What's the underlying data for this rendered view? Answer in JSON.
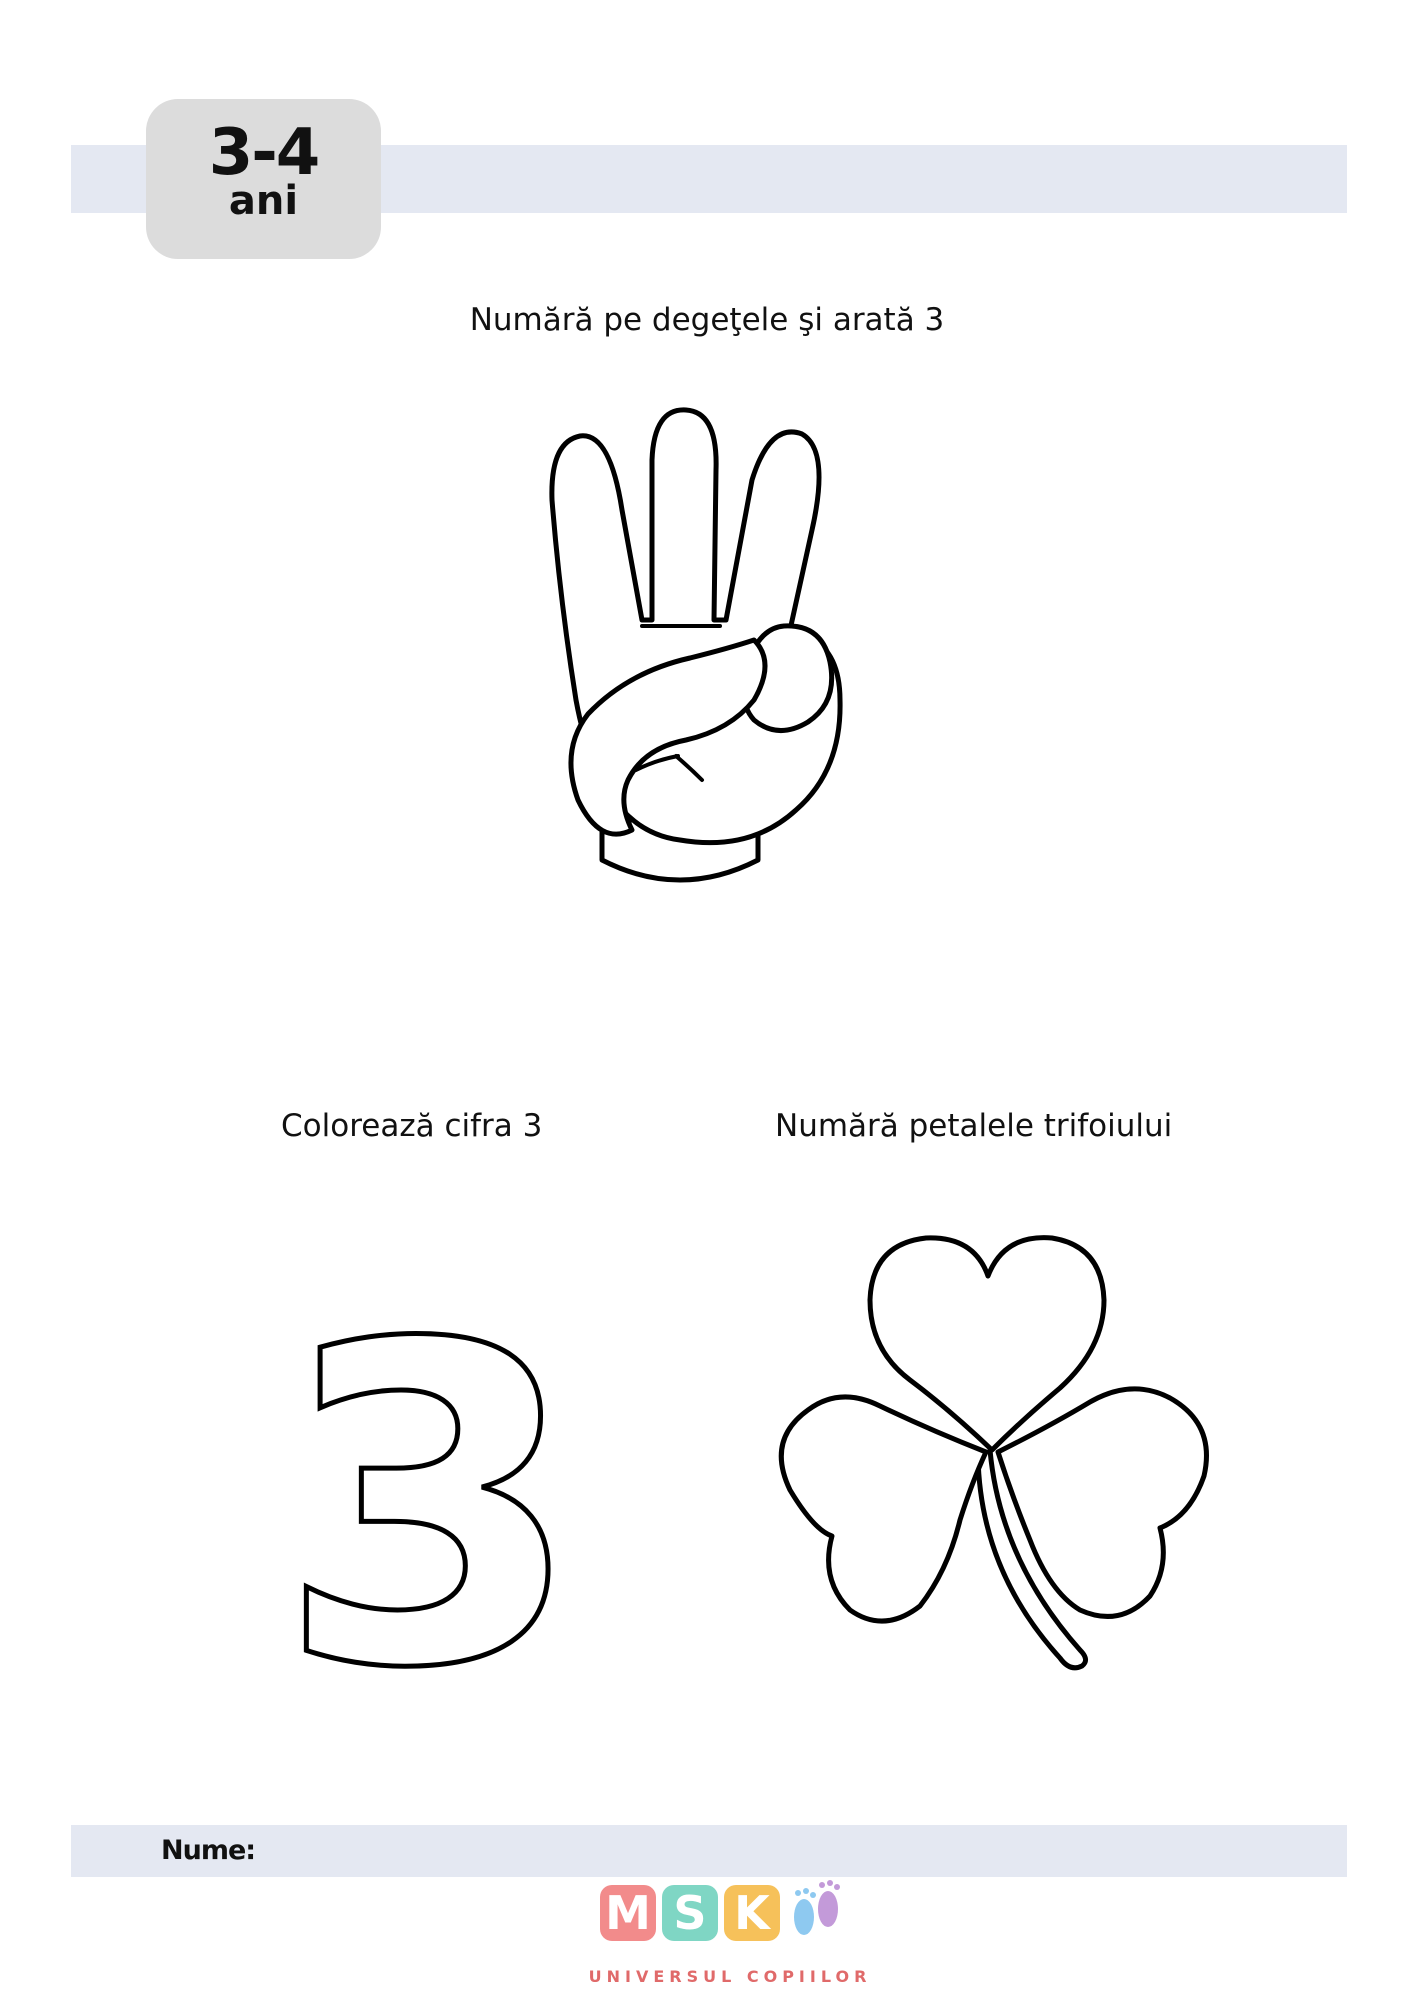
{
  "header": {
    "age_range": "3-4",
    "age_unit": "ani"
  },
  "exercises": {
    "fingers_title": "Numără pe degeţele şi arată 3",
    "color_title": "Colorează cifra 3",
    "petals_title": "Numără petalele trifoiului",
    "digit": "3"
  },
  "footer": {
    "name_label": "Nume:"
  },
  "logo": {
    "letters": [
      "M",
      "S",
      "K"
    ],
    "tagline": "UNIVERSUL COPIILOR"
  },
  "colors": {
    "band": "#e4e8f2",
    "badge": "#dcdcdc",
    "logo_m": "#f28b8b",
    "logo_s": "#7fd6c4",
    "logo_k": "#f6c15a",
    "logo_feet": "#c39ad9"
  },
  "icons": [
    "hand-three-fingers-icon",
    "clover-icon",
    "feet-icon"
  ]
}
